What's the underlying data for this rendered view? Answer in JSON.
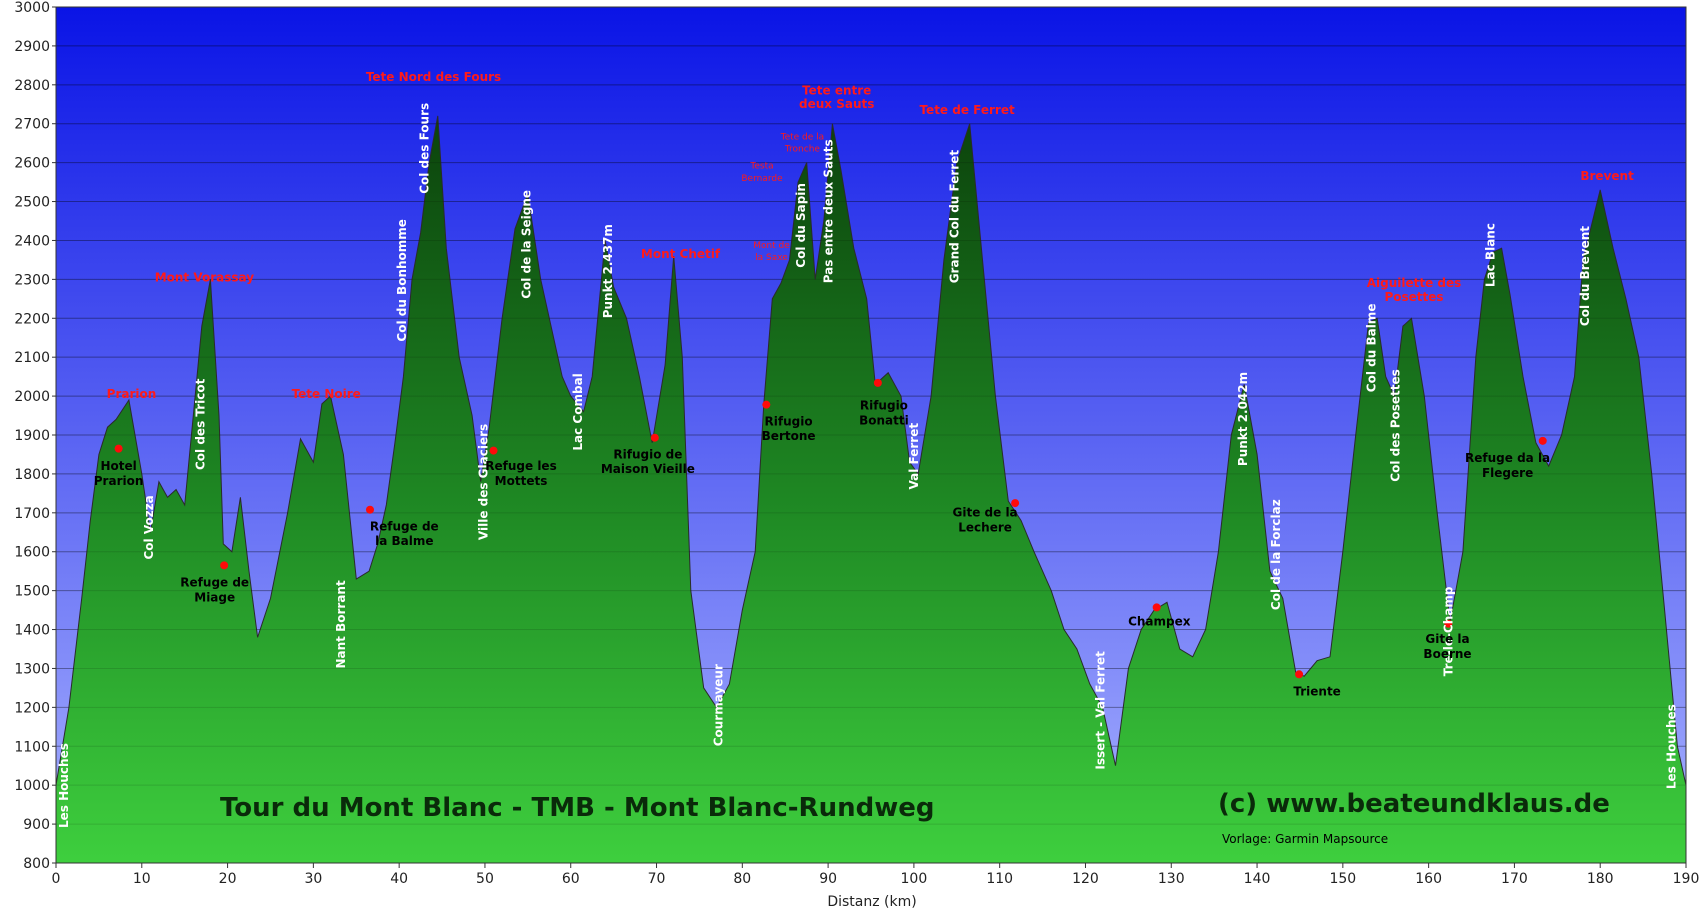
{
  "chart_data": {
    "type": "area",
    "title": "Tour du Mont Blanc - TMB  - Mont Blanc-Rundweg",
    "copyright": "(c) www.beateundklaus.de",
    "source_note": "Vorlage: Garmin Mapsource",
    "xlabel": "Distanz  (km)",
    "ylabel": "",
    "xlim": [
      0,
      190
    ],
    "ylim": [
      800,
      3000
    ],
    "x_ticks": [
      0,
      10,
      20,
      30,
      40,
      50,
      60,
      70,
      80,
      90,
      100,
      110,
      120,
      130,
      140,
      150,
      160,
      170,
      180,
      190
    ],
    "y_ticks": [
      800,
      900,
      1000,
      1100,
      1200,
      1300,
      1400,
      1500,
      1600,
      1700,
      1800,
      1900,
      2000,
      2100,
      2200,
      2300,
      2400,
      2500,
      2600,
      2700,
      2800,
      2900,
      3000
    ],
    "grid": true,
    "colors": {
      "sky_top": "#0a14e6",
      "sky_bottom": "#a8b2ff",
      "terrain_top": "#0a3d0a",
      "terrain_bottom": "#3ecf3e"
    },
    "series": [
      {
        "x": [
          0,
          1.5,
          3,
          4,
          5,
          6,
          7,
          8.5,
          10,
          11,
          12,
          13,
          14,
          15,
          16,
          17,
          18,
          19,
          19.5,
          20.5,
          21.5,
          22.5,
          23.5,
          25,
          27,
          28.5,
          30,
          31,
          32,
          33.5,
          35,
          36.5,
          37.5,
          38.5,
          39.5,
          40.5,
          41.5,
          42.5,
          43.5,
          44.5,
          45.5,
          47,
          48.5,
          49.5,
          50.5,
          52,
          53.5,
          55,
          56.5,
          58,
          59,
          60,
          61.5,
          62.5,
          64,
          65,
          66.5,
          68,
          69.5,
          71,
          72,
          73,
          74,
          75.5,
          77,
          78.5,
          80,
          81.5,
          82.5,
          83.5,
          84.5,
          85.5,
          86.5,
          87.5,
          88.5,
          89.5,
          90.5,
          91.5,
          93,
          94.5,
          95.5,
          97,
          98.5,
          99.5,
          100.5,
          102,
          103.5,
          105,
          106.5,
          108,
          109.5,
          111,
          112.5,
          114,
          116,
          117.5,
          119,
          120.5,
          122,
          123.5,
          125,
          126.5,
          128,
          129.5,
          131,
          132.5,
          134,
          135.5,
          137,
          138.5,
          140,
          141.5,
          143,
          144.5,
          145.5,
          147,
          148.5,
          150,
          151.5,
          153,
          154,
          155,
          156,
          157,
          158,
          159.5,
          161,
          162.5,
          164,
          165.5,
          166.5,
          167.5,
          168.5,
          169.5,
          171,
          172.5,
          174,
          175.5,
          177,
          178,
          179,
          180,
          181.5,
          183,
          184.5,
          186,
          187.5,
          189,
          190
        ],
        "y": [
          1000,
          1200,
          1480,
          1680,
          1850,
          1920,
          1940,
          1990,
          1800,
          1650,
          1780,
          1740,
          1760,
          1720,
          1950,
          2180,
          2300,
          1950,
          1620,
          1600,
          1740,
          1550,
          1380,
          1480,
          1700,
          1890,
          1830,
          1980,
          2000,
          1850,
          1530,
          1550,
          1620,
          1720,
          1880,
          2050,
          2300,
          2420,
          2600,
          2720,
          2380,
          2100,
          1950,
          1780,
          1920,
          2200,
          2430,
          2520,
          2300,
          2150,
          2050,
          2000,
          1960,
          2050,
          2400,
          2280,
          2200,
          2050,
          1880,
          2080,
          2360,
          2100,
          1500,
          1250,
          1200,
          1260,
          1450,
          1600,
          1980,
          2250,
          2290,
          2350,
          2550,
          2600,
          2300,
          2450,
          2700,
          2580,
          2380,
          2250,
          2030,
          2060,
          2000,
          1830,
          1800,
          2000,
          2350,
          2600,
          2700,
          2350,
          2000,
          1730,
          1680,
          1600,
          1500,
          1400,
          1350,
          1260,
          1200,
          1050,
          1300,
          1400,
          1450,
          1470,
          1350,
          1330,
          1400,
          1600,
          1900,
          2030,
          1850,
          1550,
          1480,
          1290,
          1280,
          1320,
          1330,
          1600,
          1900,
          2190,
          2200,
          2050,
          2000,
          2180,
          2200,
          2000,
          1700,
          1420,
          1600,
          2100,
          2300,
          2370,
          2380,
          2260,
          2050,
          1880,
          1820,
          1900,
          2050,
          2350,
          2440,
          2530,
          2380,
          2250,
          2100,
          1800,
          1450,
          1100,
          1000
        ]
      }
    ],
    "labels": [
      {
        "text": "Les Houches",
        "x": 1.4,
        "y": 890,
        "style": "white",
        "vertical": true
      },
      {
        "text": "Col Vozza",
        "x": 11.3,
        "y": 1580,
        "style": "white",
        "vertical": true
      },
      {
        "text": "Col des Tricot",
        "x": 17.3,
        "y": 1810,
        "style": "white",
        "vertical": true
      },
      {
        "text": "Nant Borrant",
        "x": 33.7,
        "y": 1300,
        "style": "white",
        "vertical": true
      },
      {
        "text": "Col du Bonhomme",
        "x": 40.8,
        "y": 2140,
        "style": "white",
        "vertical": true
      },
      {
        "text": "Col des Fours",
        "x": 43.4,
        "y": 2520,
        "style": "white",
        "vertical": true
      },
      {
        "text": "Ville des Glaciers",
        "x": 50.3,
        "y": 1630,
        "style": "white",
        "vertical": true
      },
      {
        "text": "Col de la Seigne",
        "x": 55.3,
        "y": 2250,
        "style": "white",
        "vertical": true
      },
      {
        "text": "Lac Combal",
        "x": 61.3,
        "y": 1860,
        "style": "white",
        "vertical": true
      },
      {
        "text": "Punkt 2.437m",
        "x": 64.8,
        "y": 2200,
        "style": "white",
        "vertical": true
      },
      {
        "text": "Courmayeur",
        "x": 77.7,
        "y": 1100,
        "style": "white",
        "vertical": true
      },
      {
        "text": "Col du Sapin",
        "x": 87.3,
        "y": 2330,
        "style": "white",
        "vertical": true
      },
      {
        "text": "Pas entre deux Sauts",
        "x": 90.5,
        "y": 2290,
        "style": "white",
        "vertical": true
      },
      {
        "text": "Val Ferret",
        "x": 100.5,
        "y": 1760,
        "style": "white",
        "vertical": true
      },
      {
        "text": "Grand Col du Ferret",
        "x": 105.2,
        "y": 2290,
        "style": "white",
        "vertical": true
      },
      {
        "text": "Issert - Val Ferret",
        "x": 122.2,
        "y": 1040,
        "style": "white",
        "vertical": true
      },
      {
        "text": "Punkt 2.042m",
        "x": 138.8,
        "y": 1820,
        "style": "white",
        "vertical": true
      },
      {
        "text": "Col de la Forclaz",
        "x": 142.7,
        "y": 1450,
        "style": "white",
        "vertical": true
      },
      {
        "text": "Col du Balme",
        "x": 153.8,
        "y": 2010,
        "style": "white",
        "vertical": true
      },
      {
        "text": "Col des Posettes",
        "x": 156.6,
        "y": 1780,
        "style": "white",
        "vertical": true
      },
      {
        "text": "Tre-le-Champ",
        "x": 162.8,
        "y": 1280,
        "style": "white",
        "vertical": true
      },
      {
        "text": "Lac Blanc",
        "x": 167.7,
        "y": 2280,
        "style": "white",
        "vertical": true
      },
      {
        "text": "Col du Brevent",
        "x": 178.7,
        "y": 2180,
        "style": "white",
        "vertical": true
      },
      {
        "text": "Les Houches",
        "x": 188.8,
        "y": 990,
        "style": "white",
        "vertical": true
      },
      {
        "text": "Hotel",
        "x": 7.3,
        "y": 1810,
        "style": "black",
        "vertical": false
      },
      {
        "text": "Prarion",
        "x": 7.3,
        "y": 1772,
        "style": "black",
        "vertical": false
      },
      {
        "text": "Refuge de",
        "x": 18.5,
        "y": 1510,
        "style": "black",
        "vertical": false
      },
      {
        "text": "Miage",
        "x": 18.5,
        "y": 1472,
        "style": "black",
        "vertical": false
      },
      {
        "text": "Refuge de",
        "x": 40.6,
        "y": 1655,
        "style": "black",
        "vertical": false
      },
      {
        "text": "la Balme",
        "x": 40.6,
        "y": 1617,
        "style": "black",
        "vertical": false
      },
      {
        "text": "Refuge les",
        "x": 54.2,
        "y": 1810,
        "style": "black",
        "vertical": false
      },
      {
        "text": "Mottets",
        "x": 54.2,
        "y": 1772,
        "style": "black",
        "vertical": false
      },
      {
        "text": "Rifugio de",
        "x": 69.0,
        "y": 1840,
        "style": "black",
        "vertical": false
      },
      {
        "text": "Maison Vieille",
        "x": 69.0,
        "y": 1802,
        "style": "black",
        "vertical": false
      },
      {
        "text": "Rifugio",
        "x": 85.4,
        "y": 1925,
        "style": "black",
        "vertical": false
      },
      {
        "text": "Bertone",
        "x": 85.4,
        "y": 1887,
        "style": "black",
        "vertical": false
      },
      {
        "text": "Rifugio",
        "x": 96.5,
        "y": 1965,
        "style": "black",
        "vertical": false
      },
      {
        "text": "Bonatti",
        "x": 96.5,
        "y": 1927,
        "style": "black",
        "vertical": false
      },
      {
        "text": "Gite de la",
        "x": 108.3,
        "y": 1690,
        "style": "black",
        "vertical": false
      },
      {
        "text": "Lechere",
        "x": 108.3,
        "y": 1652,
        "style": "black",
        "vertical": false
      },
      {
        "text": "Champex",
        "x": 128.6,
        "y": 1410,
        "style": "black",
        "vertical": false
      },
      {
        "text": "Triente",
        "x": 147.0,
        "y": 1230,
        "style": "black",
        "vertical": false
      },
      {
        "text": "Gite la",
        "x": 162.2,
        "y": 1365,
        "style": "black",
        "vertical": false
      },
      {
        "text": "Boerne",
        "x": 162.2,
        "y": 1327,
        "style": "black",
        "vertical": false
      },
      {
        "text": "Refuge da la",
        "x": 169.2,
        "y": 1830,
        "style": "black",
        "vertical": false
      },
      {
        "text": "Flegere",
        "x": 169.2,
        "y": 1792,
        "style": "black",
        "vertical": false
      },
      {
        "text": "Prarion",
        "x": 8.8,
        "y": 1995,
        "style": "red",
        "vertical": false
      },
      {
        "text": "Mont Vorassay",
        "x": 17.3,
        "y": 2295,
        "style": "red",
        "vertical": false
      },
      {
        "text": "Tete Noire",
        "x": 31.5,
        "y": 1995,
        "style": "red",
        "vertical": false
      },
      {
        "text": "Tete Nord des Fours",
        "x": 44.0,
        "y": 2810,
        "style": "red",
        "vertical": false
      },
      {
        "text": "Mont Chetif",
        "x": 72.8,
        "y": 2355,
        "style": "red",
        "vertical": false
      },
      {
        "text": "Tete entre",
        "x": 91.0,
        "y": 2775,
        "style": "red",
        "vertical": false
      },
      {
        "text": "deux Sauts",
        "x": 91.0,
        "y": 2740,
        "style": "red",
        "vertical": false
      },
      {
        "text": "Tete de Ferret",
        "x": 106.2,
        "y": 2725,
        "style": "red",
        "vertical": false
      },
      {
        "text": "Aiguilette des",
        "x": 158.3,
        "y": 2280,
        "style": "red",
        "vertical": false
      },
      {
        "text": "Posettes",
        "x": 158.3,
        "y": 2245,
        "style": "red",
        "vertical": false
      },
      {
        "text": "Brevent",
        "x": 180.8,
        "y": 2555,
        "style": "red",
        "vertical": false
      },
      {
        "text": "Tete de la",
        "x": 87.0,
        "y": 2660,
        "style": "red-small",
        "vertical": false
      },
      {
        "text": "Tronche",
        "x": 87.0,
        "y": 2628,
        "style": "red-small",
        "vertical": false
      },
      {
        "text": "Testa",
        "x": 82.3,
        "y": 2585,
        "style": "red-small",
        "vertical": false
      },
      {
        "text": "Bernarde",
        "x": 82.3,
        "y": 2553,
        "style": "red-small",
        "vertical": false
      },
      {
        "text": "Mont de",
        "x": 83.4,
        "y": 2380,
        "style": "red-small",
        "vertical": false
      },
      {
        "text": "la Saxe",
        "x": 83.4,
        "y": 2350,
        "style": "red-small",
        "vertical": false
      }
    ],
    "markers": [
      {
        "x": 7.3,
        "y": 1865
      },
      {
        "x": 19.6,
        "y": 1565
      },
      {
        "x": 36.6,
        "y": 1708
      },
      {
        "x": 51.0,
        "y": 1860
      },
      {
        "x": 69.8,
        "y": 1893
      },
      {
        "x": 82.8,
        "y": 1978
      },
      {
        "x": 95.8,
        "y": 2034
      },
      {
        "x": 111.8,
        "y": 1725
      },
      {
        "x": 128.3,
        "y": 1457
      },
      {
        "x": 144.9,
        "y": 1285
      },
      {
        "x": 162.3,
        "y": 1415
      },
      {
        "x": 173.3,
        "y": 1885
      }
    ]
  }
}
